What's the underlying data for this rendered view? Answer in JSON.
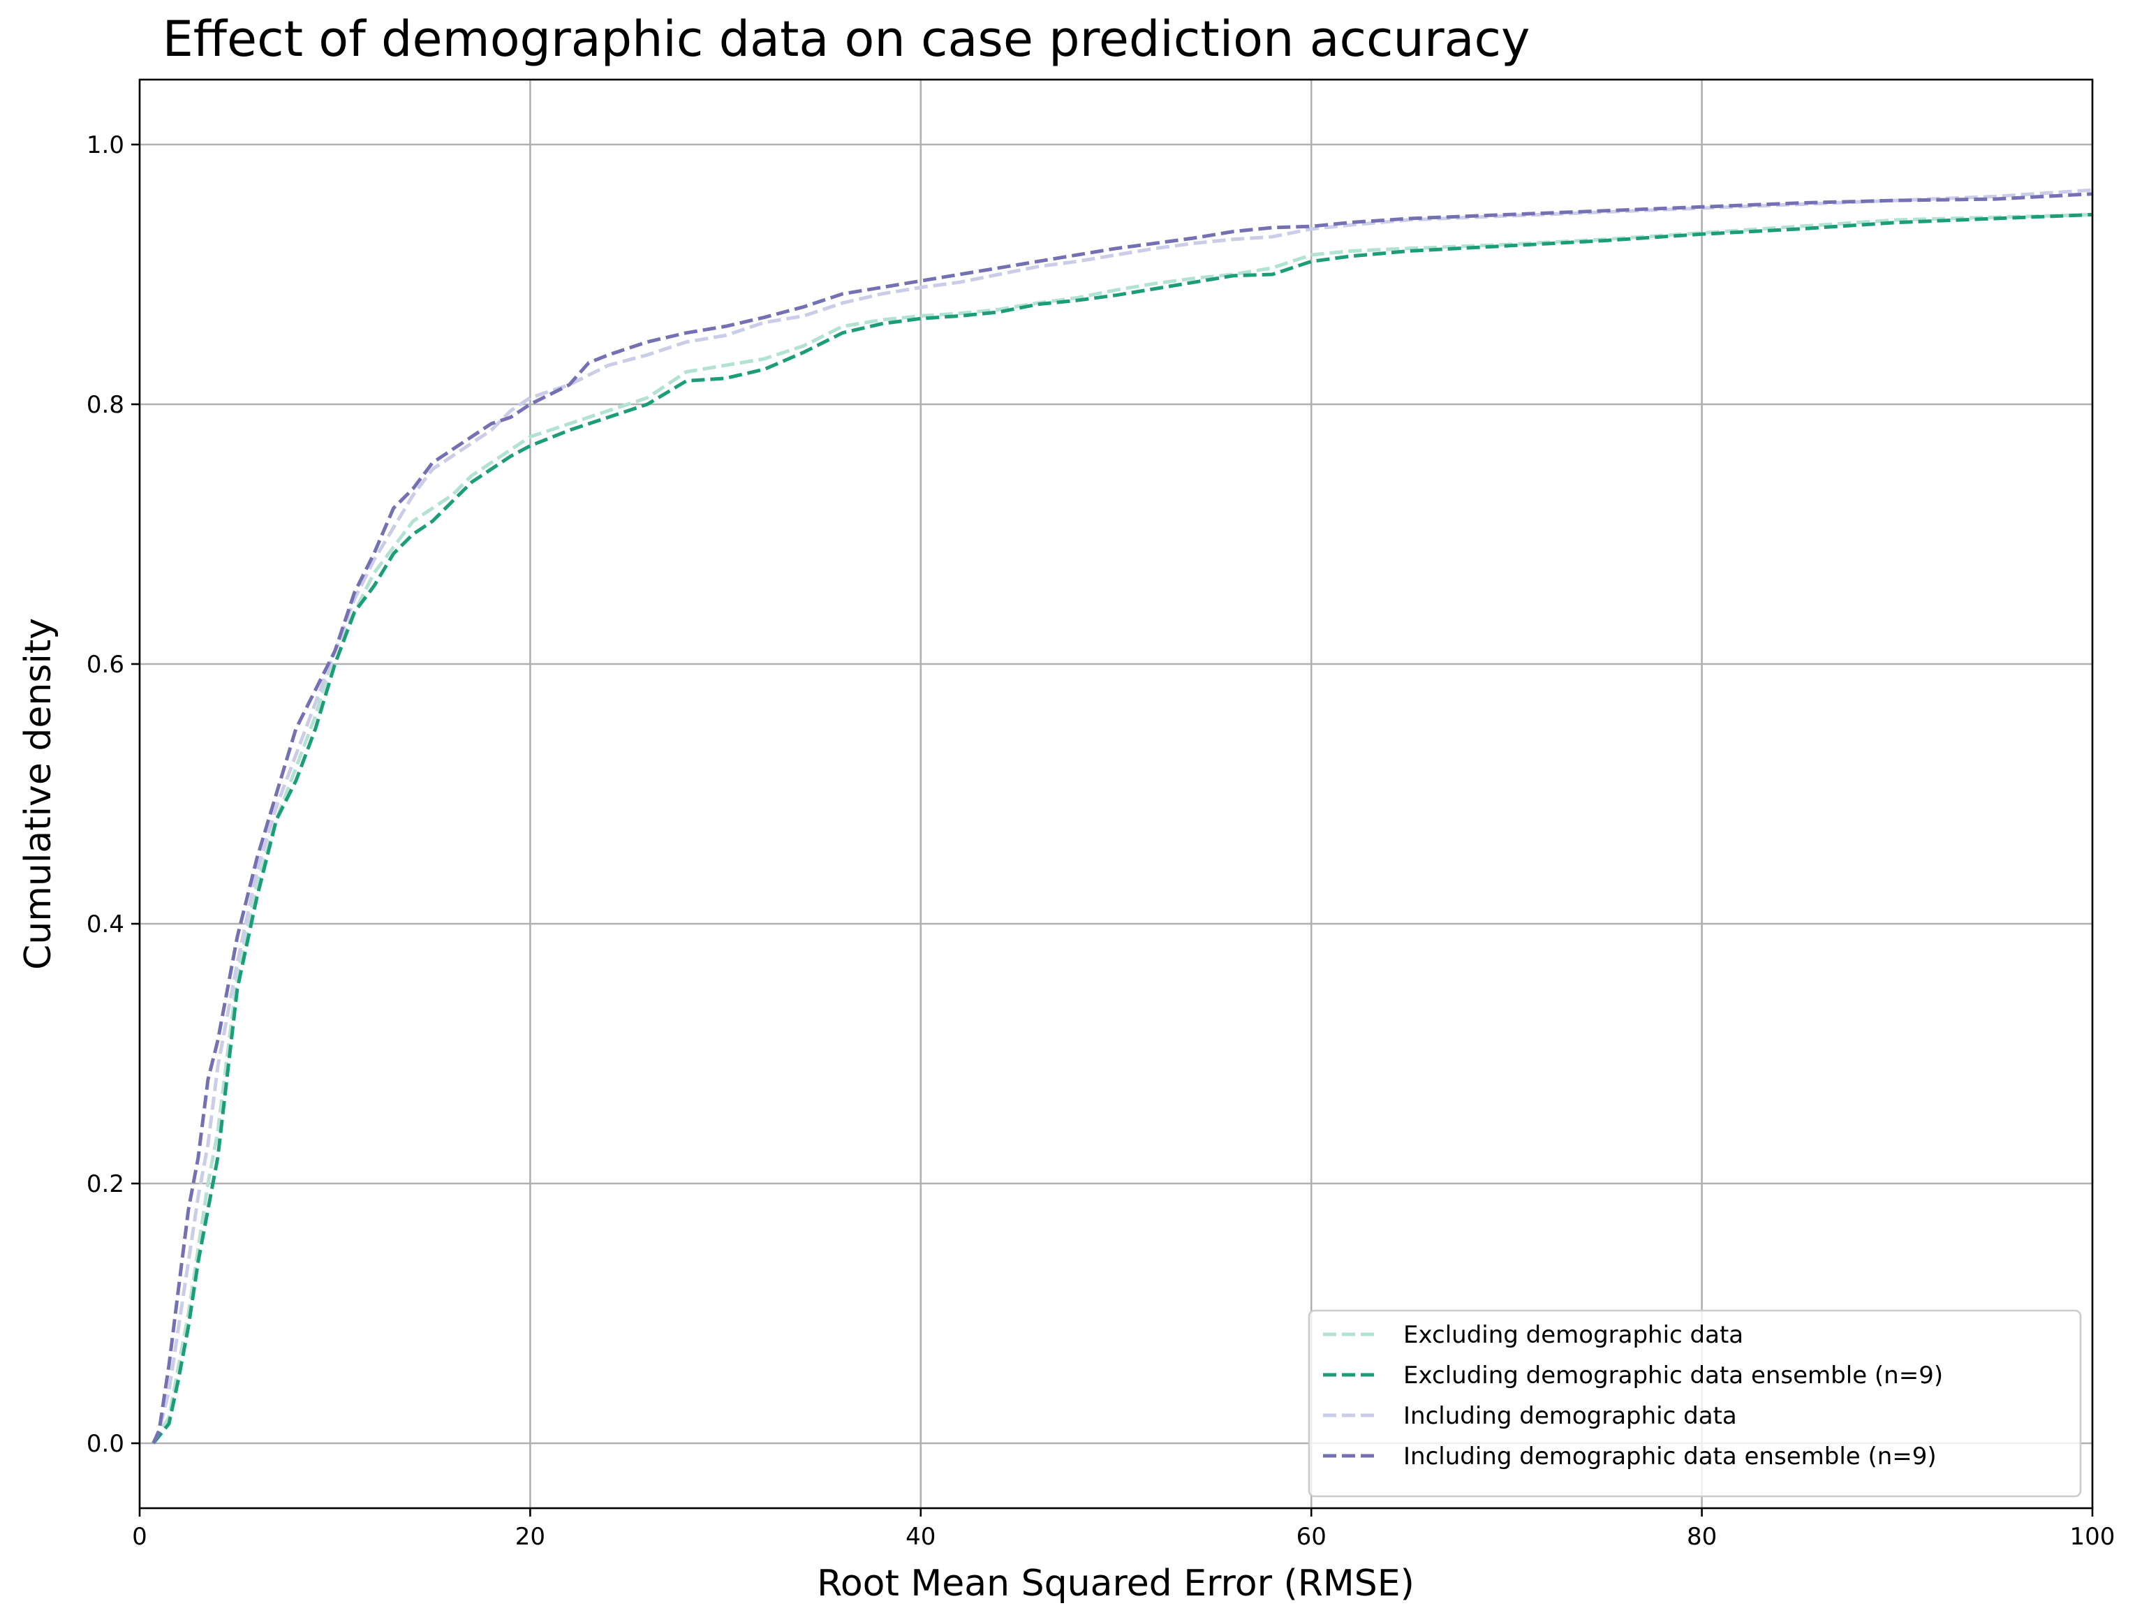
{
  "chart_data": {
    "type": "line",
    "title": "Effect of demographic data on case prediction accuracy",
    "xlabel": "Root Mean Squared Error (RMSE)",
    "ylabel": "Cumulative density",
    "xlim": [
      0,
      100
    ],
    "ylim": [
      -0.05,
      1.05
    ],
    "x_ticks": [
      0,
      20,
      40,
      60,
      80,
      100
    ],
    "y_ticks": [
      0.0,
      0.2,
      0.4,
      0.6,
      0.8,
      1.0
    ],
    "x_tick_labels": [
      "0",
      "20",
      "40",
      "60",
      "80",
      "100"
    ],
    "y_tick_labels": [
      "0.0",
      "0.2",
      "0.4",
      "0.6",
      "0.8",
      "1.0"
    ],
    "grid": true,
    "legend_position": "lower-right",
    "line_style": "dashed",
    "series": [
      {
        "name": "Excluding demographic data",
        "color": "#b2e2d2",
        "x": [
          0.7,
          1.5,
          2.0,
          2.5,
          3.0,
          3.5,
          4.0,
          5.0,
          6.0,
          7.0,
          8.0,
          9.0,
          10.0,
          11.0,
          12.0,
          13.0,
          14.0,
          15.0,
          16.0,
          17.0,
          18.0,
          19.0,
          20.0,
          22.0,
          24.0,
          26.0,
          28.0,
          30.0,
          32.0,
          34.0,
          36.0,
          38.0,
          40.0,
          42.0,
          44.0,
          46.0,
          48.0,
          50.0,
          52.0,
          54.0,
          56.0,
          58.0,
          59.0,
          60.0,
          62.0,
          65.0,
          70.0,
          75.0,
          80.0,
          85.0,
          90.0,
          95.0,
          100.0
        ],
        "y": [
          0.0,
          0.02,
          0.06,
          0.1,
          0.15,
          0.2,
          0.24,
          0.36,
          0.43,
          0.48,
          0.52,
          0.56,
          0.61,
          0.64,
          0.67,
          0.69,
          0.71,
          0.72,
          0.73,
          0.745,
          0.755,
          0.765,
          0.775,
          0.785,
          0.795,
          0.805,
          0.825,
          0.83,
          0.835,
          0.845,
          0.86,
          0.865,
          0.868,
          0.87,
          0.873,
          0.878,
          0.882,
          0.888,
          0.893,
          0.897,
          0.9,
          0.905,
          0.91,
          0.915,
          0.918,
          0.92,
          0.923,
          0.927,
          0.932,
          0.937,
          0.942,
          0.944,
          0.946
        ]
      },
      {
        "name": "Excluding demographic data ensemble (n=9)",
        "color": "#1b9e77",
        "x": [
          0.7,
          1.5,
          2.0,
          2.5,
          3.0,
          3.5,
          4.0,
          5.0,
          6.0,
          7.0,
          8.0,
          9.0,
          10.0,
          11.0,
          12.0,
          13.0,
          14.0,
          15.0,
          16.0,
          17.0,
          18.0,
          19.0,
          20.0,
          22.0,
          24.0,
          26.0,
          28.0,
          30.0,
          32.0,
          34.0,
          36.0,
          38.0,
          40.0,
          42.0,
          44.0,
          46.0,
          48.0,
          50.0,
          52.0,
          54.0,
          56.0,
          58.0,
          59.0,
          60.0,
          62.0,
          65.0,
          70.0,
          75.0,
          80.0,
          85.0,
          90.0,
          95.0,
          100.0
        ],
        "y": [
          0.0,
          0.015,
          0.05,
          0.09,
          0.14,
          0.18,
          0.22,
          0.35,
          0.42,
          0.48,
          0.51,
          0.55,
          0.6,
          0.64,
          0.66,
          0.685,
          0.7,
          0.71,
          0.725,
          0.74,
          0.75,
          0.76,
          0.768,
          0.78,
          0.79,
          0.8,
          0.818,
          0.82,
          0.827,
          0.84,
          0.855,
          0.862,
          0.866,
          0.868,
          0.871,
          0.877,
          0.88,
          0.884,
          0.889,
          0.894,
          0.899,
          0.9,
          0.905,
          0.91,
          0.914,
          0.918,
          0.922,
          0.926,
          0.931,
          0.935,
          0.94,
          0.943,
          0.946
        ]
      },
      {
        "name": "Including demographic data",
        "color": "#cbcde8",
        "x": [
          0.7,
          1.0,
          1.5,
          2.0,
          2.5,
          3.0,
          3.5,
          4.0,
          5.0,
          6.0,
          7.0,
          8.0,
          9.0,
          10.0,
          11.0,
          12.0,
          13.0,
          14.0,
          15.0,
          16.0,
          17.0,
          18.0,
          19.0,
          20.0,
          22.0,
          24.0,
          26.0,
          28.0,
          30.0,
          32.0,
          34.0,
          36.0,
          38.0,
          40.0,
          42.0,
          44.0,
          46.0,
          48.0,
          50.0,
          52.0,
          54.0,
          56.0,
          58.0,
          60.0,
          62.0,
          65.0,
          70.0,
          75.0,
          80.0,
          85.0,
          90.0,
          95.0,
          100.0
        ],
        "y": [
          0.0,
          0.01,
          0.04,
          0.09,
          0.14,
          0.19,
          0.23,
          0.29,
          0.37,
          0.44,
          0.49,
          0.53,
          0.57,
          0.61,
          0.65,
          0.68,
          0.705,
          0.73,
          0.75,
          0.76,
          0.77,
          0.78,
          0.795,
          0.805,
          0.815,
          0.83,
          0.838,
          0.848,
          0.853,
          0.863,
          0.868,
          0.878,
          0.885,
          0.89,
          0.894,
          0.9,
          0.906,
          0.91,
          0.915,
          0.92,
          0.924,
          0.927,
          0.929,
          0.935,
          0.938,
          0.942,
          0.945,
          0.948,
          0.951,
          0.954,
          0.957,
          0.96,
          0.965
        ]
      },
      {
        "name": "Including demographic data ensemble (n=9)",
        "color": "#7570b3",
        "x": [
          0.7,
          1.0,
          1.5,
          2.0,
          2.5,
          3.0,
          3.5,
          4.0,
          5.0,
          6.0,
          7.0,
          8.0,
          9.0,
          10.0,
          11.0,
          12.0,
          13.0,
          14.0,
          15.0,
          16.0,
          17.0,
          18.0,
          19.0,
          20.0,
          22.0,
          23.0,
          24.0,
          26.0,
          28.0,
          30.0,
          32.0,
          34.0,
          36.0,
          38.0,
          40.0,
          42.0,
          44.0,
          46.0,
          48.0,
          50.0,
          52.0,
          54.0,
          56.0,
          58.0,
          60.0,
          62.0,
          65.0,
          70.0,
          75.0,
          80.0,
          85.0,
          90.0,
          95.0,
          100.0
        ],
        "y": [
          0.0,
          0.01,
          0.06,
          0.12,
          0.18,
          0.22,
          0.28,
          0.31,
          0.39,
          0.45,
          0.5,
          0.55,
          0.58,
          0.61,
          0.655,
          0.685,
          0.72,
          0.735,
          0.755,
          0.765,
          0.775,
          0.785,
          0.79,
          0.8,
          0.815,
          0.832,
          0.838,
          0.848,
          0.855,
          0.86,
          0.867,
          0.875,
          0.885,
          0.89,
          0.895,
          0.9,
          0.905,
          0.91,
          0.915,
          0.92,
          0.924,
          0.928,
          0.933,
          0.936,
          0.937,
          0.94,
          0.943,
          0.946,
          0.949,
          0.952,
          0.955,
          0.957,
          0.958,
          0.962
        ]
      }
    ]
  }
}
